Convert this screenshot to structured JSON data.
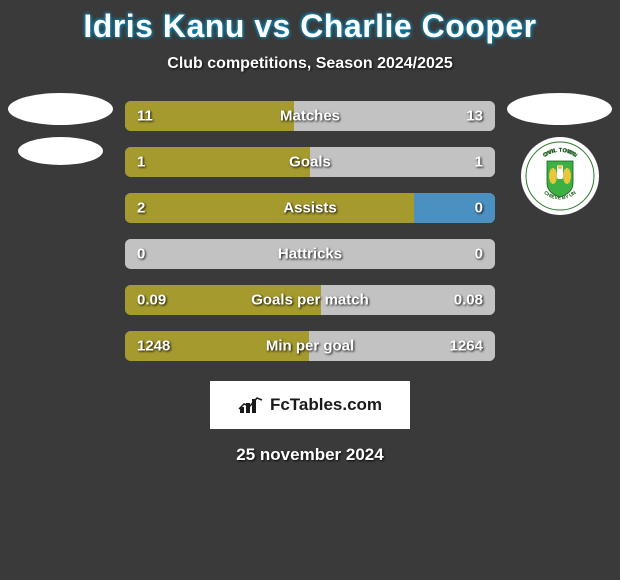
{
  "title": "Idris Kanu vs Charlie Cooper",
  "subtitle": "Club competitions, Season 2024/2025",
  "date": "25 november 2024",
  "watermark": "FcTables.com",
  "colors": {
    "background": "#3a3a3a",
    "bar_track": "#c2c2c2",
    "left_player": "#a49a2e",
    "right_player": "#40a040",
    "right_alt": "#4a90c0",
    "text": "#ffffff"
  },
  "crest_right": {
    "bg": "#ffffff",
    "shield": "#3cb043",
    "lion": "#e8c73a",
    "text_top": "OVIL TOWN",
    "text_bottom": "CHIEVE BY UN"
  },
  "stats": [
    {
      "label": "Matches",
      "left_val": "11",
      "right_val": "13",
      "left_pct": 45.8,
      "right_pct": 54.2,
      "left_color": "#a49a2e",
      "right_color": "#c2c2c2"
    },
    {
      "label": "Goals",
      "left_val": "1",
      "right_val": "1",
      "left_pct": 50,
      "right_pct": 50,
      "left_color": "#a49a2e",
      "right_color": "#c2c2c2"
    },
    {
      "label": "Assists",
      "left_val": "2",
      "right_val": "0",
      "left_pct": 78,
      "right_pct": 22,
      "left_color": "#a49a2e",
      "right_color": "#4a90c0"
    },
    {
      "label": "Hattricks",
      "left_val": "0",
      "right_val": "0",
      "left_pct": 50,
      "right_pct": 50,
      "left_color": "#c2c2c2",
      "right_color": "#c2c2c2"
    },
    {
      "label": "Goals per match",
      "left_val": "0.09",
      "right_val": "0.08",
      "left_pct": 52.9,
      "right_pct": 47.1,
      "left_color": "#a49a2e",
      "right_color": "#c2c2c2"
    },
    {
      "label": "Min per goal",
      "left_val": "1248",
      "right_val": "1264",
      "left_pct": 49.7,
      "right_pct": 50.3,
      "left_color": "#a49a2e",
      "right_color": "#c2c2c2"
    }
  ]
}
